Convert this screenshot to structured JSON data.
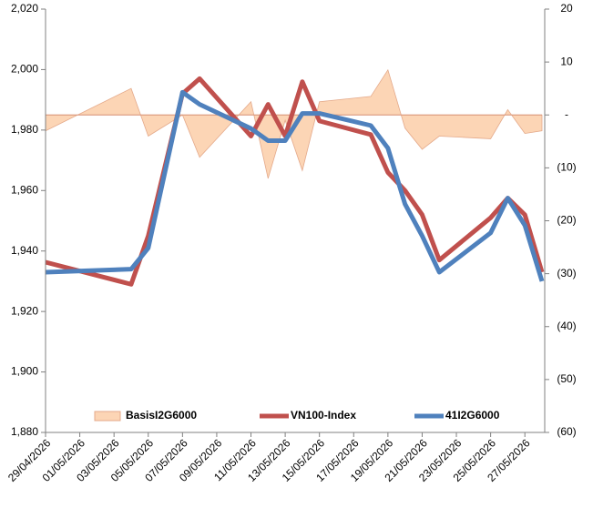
{
  "chart_data": {
    "type": "line",
    "x": [
      "29/04/2026",
      "04/05/2026",
      "05/05/2026",
      "07/05/2026",
      "08/05/2026",
      "11/05/2026",
      "12/05/2026",
      "13/05/2026",
      "14/05/2026",
      "15/05/2026",
      "18/05/2026",
      "19/05/2026",
      "20/05/2026",
      "21/05/2026",
      "22/05/2026",
      "25/05/2026",
      "26/05/2026",
      "27/05/2026",
      "28/05/2026"
    ],
    "xlim": [
      "29/04/2026",
      "28/05/2026"
    ],
    "xticks": [
      "29/04/2026",
      "01/05/2026",
      "03/05/2026",
      "05/05/2026",
      "07/05/2026",
      "09/05/2026",
      "11/05/2026",
      "13/05/2026",
      "15/05/2026",
      "17/05/2026",
      "19/05/2026",
      "21/05/2026",
      "23/05/2026",
      "25/05/2026",
      "27/05/2026"
    ],
    "ylim": [
      1880,
      2020
    ],
    "yticks": [
      {
        "value": 1880,
        "label": "1,880"
      },
      {
        "value": 1900,
        "label": "1,900"
      },
      {
        "value": 1920,
        "label": "1,920"
      },
      {
        "value": 1940,
        "label": "1,940"
      },
      {
        "value": 1960,
        "label": "1,960"
      },
      {
        "value": 1980,
        "label": "1,980"
      },
      {
        "value": 2000,
        "label": "2,000"
      },
      {
        "value": 2020,
        "label": "2,020"
      }
    ],
    "y2lim": [
      -60,
      20
    ],
    "y2ticks": [
      {
        "value": -60,
        "label": "(60)"
      },
      {
        "value": -50,
        "label": "(50)"
      },
      {
        "value": -40,
        "label": "(40)"
      },
      {
        "value": -30,
        "label": "(30)"
      },
      {
        "value": -20,
        "label": "(20)"
      },
      {
        "value": -10,
        "label": "(10)"
      },
      {
        "value": 0,
        "label": "-"
      },
      10,
      20
    ],
    "legend": "bottom",
    "series": [
      {
        "name": "BasisI2G6000",
        "kind": "area",
        "axis": "y2",
        "color": "#fcd5b5",
        "values": [
          -3,
          5,
          -4,
          0,
          -8,
          2.5,
          -12,
          -1,
          -10.5,
          2.5,
          3.5,
          8.5,
          -2.5,
          -6.5,
          -4,
          -4.5,
          1,
          -3.5,
          -3
        ]
      },
      {
        "name": "VN100-Index",
        "color": "#c0504d",
        "values": [
          1936.3,
          1929,
          1945,
          1992,
          1997,
          1978,
          1988.5,
          1978,
          1996,
          1983,
          1978.5,
          1966,
          1960,
          1952,
          1937,
          1951,
          1957.5,
          1952,
          1933
        ]
      },
      {
        "name": "41I2G6000",
        "color": "#4f81bd",
        "values": [
          1933,
          1934,
          1941,
          1992.5,
          1988.5,
          1980.5,
          1976.5,
          1976.5,
          1985.5,
          1985.5,
          1981.5,
          1974,
          1955.5,
          1945,
          1933,
          1946,
          1957.5,
          1948.5,
          1930
        ]
      }
    ]
  }
}
